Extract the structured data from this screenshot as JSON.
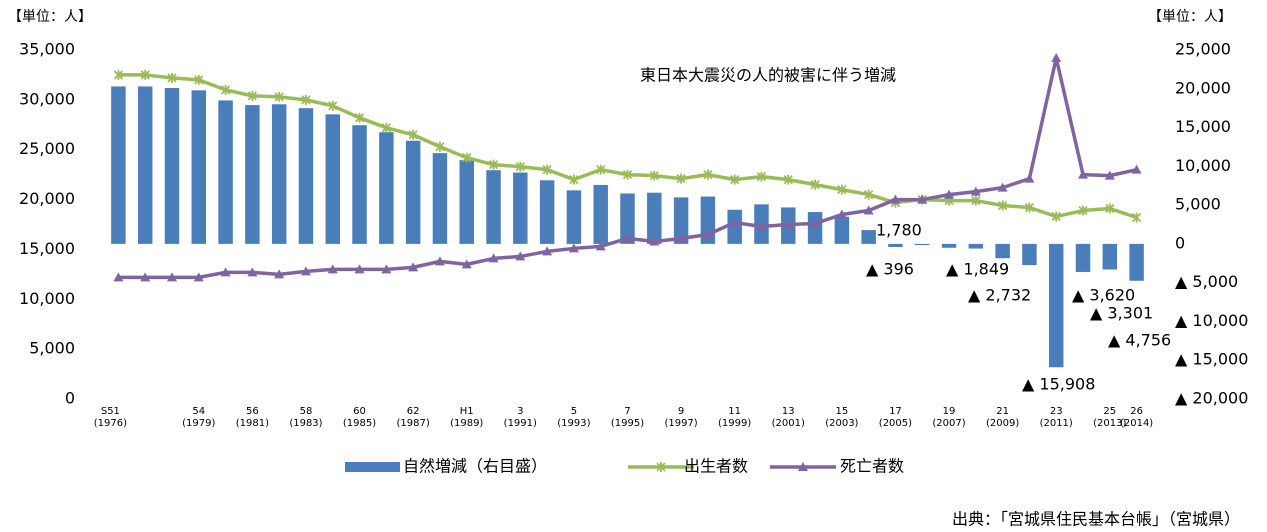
{
  "chart_data": {
    "type": "bar",
    "unit_left": "【単位：人】",
    "unit_right": "【単位：人】",
    "annotation": "東日本大震災の人的被害に伴う増減",
    "source": "出典：「宮城県住民基本台帳」（宮城県）",
    "categories": [
      "S51\n(1976)",
      null,
      null,
      "54\n(1979)",
      null,
      "56\n(1981)",
      null,
      "58\n(1983)",
      null,
      "60\n(1985)",
      null,
      "62\n(1987)",
      null,
      "H1\n(1989)",
      null,
      "3\n(1991)",
      null,
      "5\n(1993)",
      null,
      "7\n(1995)",
      null,
      "9\n(1997)",
      null,
      "11\n(1999)",
      null,
      "13\n(2001)",
      null,
      "15\n(2003)",
      null,
      "17\n(2005)",
      null,
      "19\n(2007)",
      null,
      "21\n(2009)",
      null,
      "23\n(2011)",
      null,
      "25\n(2013)",
      "26\n(2014)"
    ],
    "series": [
      {
        "name": "自然増減（右目盛）",
        "type": "bar",
        "axis": "y2",
        "color": "#4a7ebb",
        "values": [
          20300,
          20300,
          20100,
          19800,
          18500,
          17900,
          18000,
          17500,
          16700,
          15300,
          14400,
          13300,
          11700,
          10800,
          9500,
          9200,
          8200,
          6900,
          7600,
          6500,
          6600,
          6000,
          6100,
          4400,
          5100,
          4700,
          4100,
          3500,
          1780,
          -396,
          -150,
          -500,
          -600,
          -1849,
          -2732,
          -15908,
          -3620,
          -3301,
          -4756
        ],
        "value_labels": [
          null,
          null,
          null,
          null,
          null,
          null,
          null,
          null,
          null,
          null,
          null,
          null,
          null,
          null,
          null,
          null,
          null,
          null,
          null,
          null,
          null,
          null,
          null,
          null,
          null,
          null,
          null,
          null,
          "1,780",
          "▲ 396",
          null,
          null,
          null,
          "▲ 1,849",
          "▲ 2,732",
          "▲ 15,908",
          "▲ 3,620",
          "▲ 3,301",
          "▲ 4,756"
        ]
      },
      {
        "name": "出生者数",
        "type": "line",
        "color": "#9bbb59",
        "values": [
          32500,
          32500,
          32200,
          32000,
          31000,
          30400,
          30300,
          30000,
          29400,
          28200,
          27200,
          26500,
          25300,
          24200,
          23500,
          23300,
          23000,
          22000,
          23000,
          22500,
          22400,
          22100,
          22500,
          22000,
          22300,
          22000,
          21500,
          21000,
          20500,
          19700,
          20000,
          19900,
          19900,
          19400,
          19200,
          18300,
          18900,
          19100,
          18200
        ]
      },
      {
        "name": "死亡者数",
        "type": "line",
        "color": "#8064a2",
        "values": [
          12200,
          12200,
          12200,
          12200,
          12700,
          12700,
          12500,
          12800,
          13000,
          13000,
          13000,
          13200,
          13800,
          13500,
          14100,
          14300,
          14800,
          15100,
          15300,
          16100,
          15800,
          16100,
          16500,
          17700,
          17300,
          17500,
          17600,
          18500,
          18900,
          20000,
          20000,
          20500,
          20800,
          21200,
          22100,
          34200,
          22500,
          22400,
          23000
        ]
      }
    ],
    "ylim": [
      0,
      35000
    ],
    "yticks": [
      0,
      {
        "value": 5000,
        "label": "5,000"
      },
      {
        "value": 10000,
        "label": "10,000"
      },
      {
        "value": 15000,
        "label": "15,000"
      },
      {
        "value": 20000,
        "label": "20,000"
      },
      {
        "value": 25000,
        "label": "25,000"
      },
      {
        "value": 30000,
        "label": "30,000"
      },
      {
        "value": 35000,
        "label": "35,000"
      }
    ],
    "y2lim": [
      -20000,
      25000
    ],
    "y2ticks": [
      {
        "value": -20000,
        "label": "▲ 20,000"
      },
      {
        "value": -15000,
        "label": "▲ 15,000"
      },
      {
        "value": -10000,
        "label": "▲ 10,000"
      },
      {
        "value": -5000,
        "label": "▲ 5,000"
      },
      0,
      {
        "value": 5000,
        "label": "5,000"
      },
      {
        "value": 10000,
        "label": "10,000"
      },
      {
        "value": 15000,
        "label": "15,000"
      },
      {
        "value": 20000,
        "label": "20,000"
      },
      {
        "value": 25000,
        "label": "25,000"
      }
    ],
    "grid": false,
    "legend": "bottom"
  }
}
